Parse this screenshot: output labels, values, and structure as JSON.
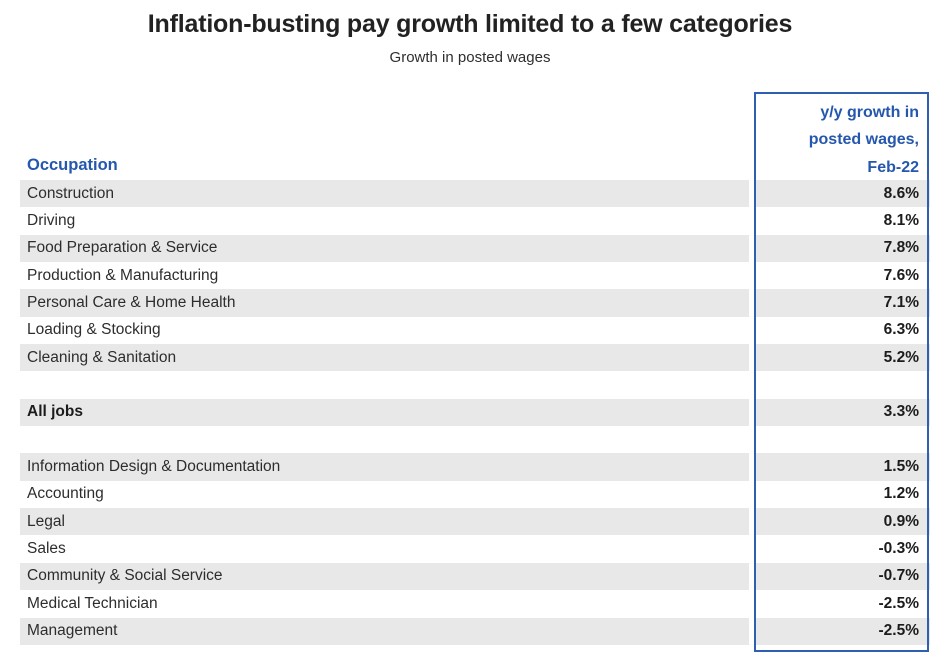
{
  "header": {
    "title": "Inflation-busting pay growth limited to a few categories",
    "subtitle": "Growth in posted wages"
  },
  "table": {
    "occupation_header": "Occupation",
    "value_header_lines": [
      "y/y growth in",
      "posted wages,",
      "Feb-22"
    ],
    "rows": [
      {
        "label": "Construction",
        "value": "8.6%",
        "shaded": true
      },
      {
        "label": "Driving",
        "value": "8.1%",
        "shaded": false
      },
      {
        "label": "Food Preparation & Service",
        "value": "7.8%",
        "shaded": true
      },
      {
        "label": "Production & Manufacturing",
        "value": "7.6%",
        "shaded": false
      },
      {
        "label": "Personal Care & Home Health",
        "value": "7.1%",
        "shaded": true
      },
      {
        "label": "Loading & Stocking",
        "value": "6.3%",
        "shaded": false
      },
      {
        "label": "Cleaning & Sanitation",
        "value": "5.2%",
        "shaded": true
      },
      {
        "label": "",
        "value": "",
        "shaded": false,
        "spacer": true
      },
      {
        "label": "All jobs",
        "value": "3.3%",
        "shaded": true,
        "bold": true
      },
      {
        "label": "",
        "value": "",
        "shaded": false,
        "spacer": true
      },
      {
        "label": "Information Design & Documentation",
        "value": "1.5%",
        "shaded": true
      },
      {
        "label": "Accounting",
        "value": "1.2%",
        "shaded": false
      },
      {
        "label": "Legal",
        "value": "0.9%",
        "shaded": true
      },
      {
        "label": "Sales",
        "value": "-0.3%",
        "shaded": false
      },
      {
        "label": "Community & Social Service",
        "value": "-0.7%",
        "shaded": true
      },
      {
        "label": "Medical Technician",
        "value": "-2.5%",
        "shaded": false
      },
      {
        "label": "Management",
        "value": "-2.5%",
        "shaded": true
      }
    ]
  },
  "colors": {
    "accent_blue": "#2E5FB0",
    "header_text_blue": "#2457AD",
    "row_shade_gray": "#E8E8E8",
    "text_dark": "#222222"
  },
  "chart_data": {
    "type": "table",
    "title": "Inflation-busting pay growth limited to a few categories",
    "subtitle": "Growth in posted wages",
    "columns": [
      "Occupation",
      "y/y growth in posted wages, Feb-22"
    ],
    "categories": [
      "Construction",
      "Driving",
      "Food Preparation & Service",
      "Production & Manufacturing",
      "Personal Care & Home Health",
      "Loading & Stocking",
      "Cleaning & Sanitation",
      "All jobs",
      "Information Design & Documentation",
      "Accounting",
      "Legal",
      "Sales",
      "Community & Social Service",
      "Medical Technician",
      "Management"
    ],
    "values": [
      8.6,
      8.1,
      7.8,
      7.6,
      7.1,
      6.3,
      5.2,
      3.3,
      1.5,
      1.2,
      0.9,
      -0.3,
      -0.7,
      -2.5,
      -2.5
    ],
    "unit": "%",
    "benchmark": {
      "label": "All jobs",
      "value": 3.3
    },
    "highlighted_column": "y/y growth in posted wages, Feb-22"
  }
}
